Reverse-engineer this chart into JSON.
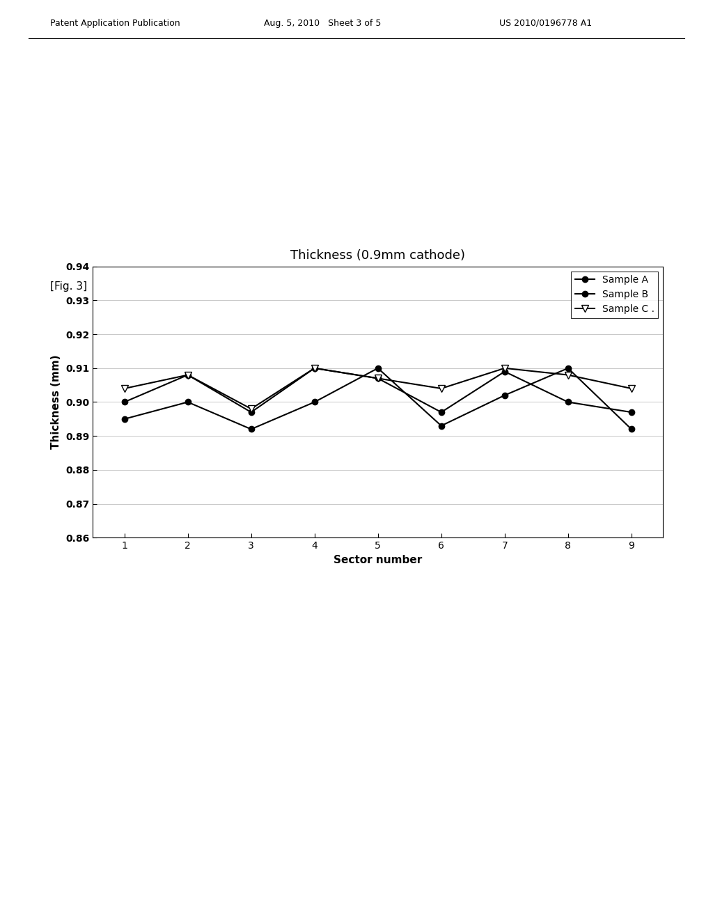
{
  "title": "Thickness (0.9mm cathode)",
  "xlabel": "Sector number",
  "ylabel": "Thickness (mm)",
  "x": [
    1,
    2,
    3,
    4,
    5,
    6,
    7,
    8,
    9
  ],
  "sample_A": [
    0.895,
    0.9,
    0.892,
    0.9,
    0.91,
    0.893,
    0.902,
    0.91,
    0.892
  ],
  "sample_B": [
    0.9,
    0.908,
    0.897,
    0.91,
    0.907,
    0.897,
    0.909,
    0.9,
    0.897
  ],
  "sample_C": [
    0.904,
    0.908,
    0.898,
    0.91,
    0.907,
    0.904,
    0.91,
    0.908,
    0.904
  ],
  "ylim": [
    0.86,
    0.94
  ],
  "yticks": [
    0.86,
    0.87,
    0.88,
    0.89,
    0.9,
    0.91,
    0.92,
    0.93,
    0.94
  ],
  "xticks": [
    1,
    2,
    3,
    4,
    5,
    6,
    7,
    8,
    9
  ],
  "legend_labels": [
    "Sample A",
    "Sample B",
    "Sample C ."
  ],
  "color_A": "#000000",
  "color_B": "#000000",
  "color_C": "#000000",
  "bg_color": "#ffffff",
  "fig_label": "[Fig. 3]",
  "header_left": "Patent Application Publication",
  "header_mid": "Aug. 5, 2010   Sheet 3 of 5",
  "header_right": "US 2010/0196778 A1",
  "title_fontsize": 13,
  "axis_label_fontsize": 11,
  "tick_fontsize": 10,
  "legend_fontsize": 10
}
